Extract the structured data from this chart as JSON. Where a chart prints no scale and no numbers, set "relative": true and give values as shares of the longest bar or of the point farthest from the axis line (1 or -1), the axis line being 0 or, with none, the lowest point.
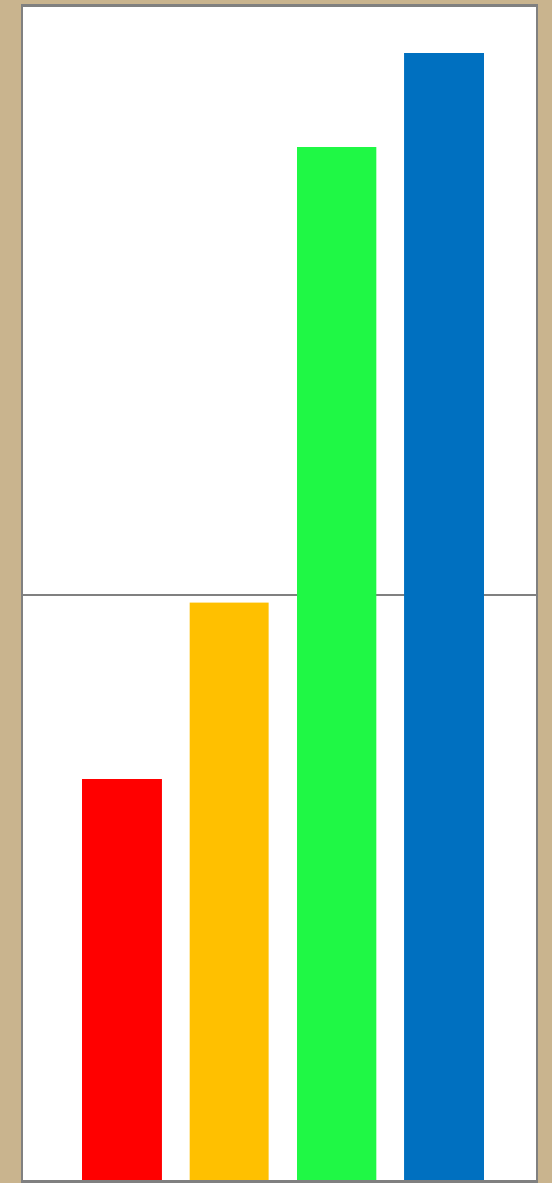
{
  "chart_data": {
    "type": "bar",
    "relative": true,
    "categories": [
      null,
      null,
      null,
      null
    ],
    "values": [
      0.357,
      0.513,
      0.917,
      1
    ],
    "colors": [
      "#ff0000",
      "#ffc000",
      "#1ff845",
      "#0070c0"
    ],
    "ref_lines": [
      {
        "axis": "y",
        "value": 0.52,
        "color": "#808080"
      }
    ]
  }
}
